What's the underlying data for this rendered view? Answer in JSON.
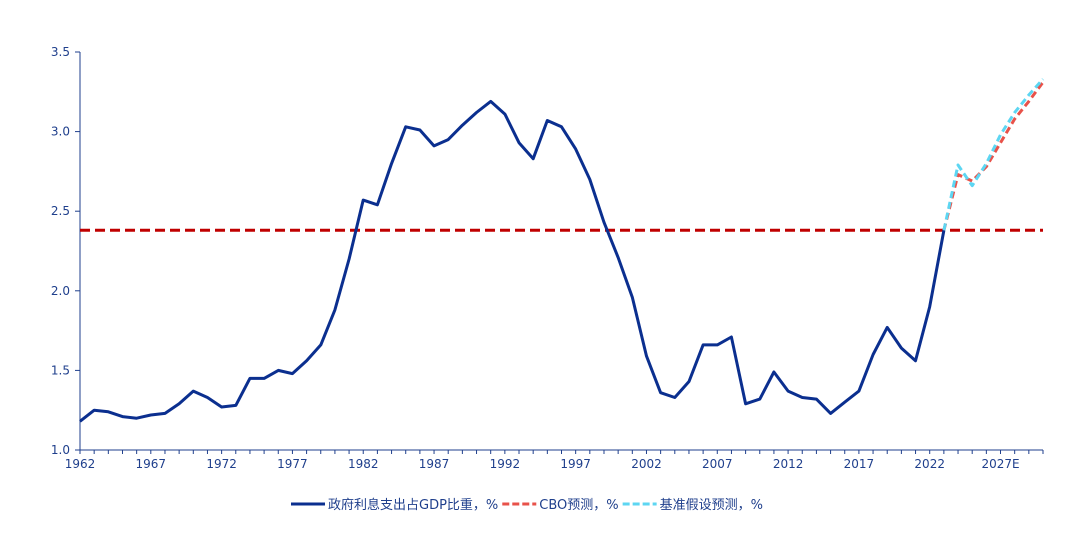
{
  "chart_data": {
    "type": "line",
    "title": "",
    "xlabel": "",
    "ylabel": "",
    "ylim": [
      1.0,
      3.5
    ],
    "y_ticks": [
      "1.0",
      "1.5",
      "2.0",
      "2.5",
      "3.0",
      "3.5"
    ],
    "x_tick_labels": [
      "1962",
      "1967",
      "1972",
      "1977",
      "1982",
      "1987",
      "1992",
      "1997",
      "2002",
      "2007",
      "2012",
      "2017",
      "2022",
      "2027E"
    ],
    "legend_position": "bottom",
    "grid": false,
    "reference_line": {
      "value": 2.38,
      "color": "#c00000",
      "style": "dashed"
    },
    "series": [
      {
        "name": "政府利息支出占GDP比重，%",
        "color": "#0b2f8f",
        "style": "solid",
        "x": [
          1962,
          1963,
          1964,
          1965,
          1966,
          1967,
          1968,
          1969,
          1970,
          1971,
          1972,
          1973,
          1974,
          1975,
          1976,
          1977,
          1978,
          1979,
          1980,
          1981,
          1982,
          1983,
          1984,
          1985,
          1986,
          1987,
          1988,
          1989,
          1990,
          1991,
          1992,
          1993,
          1994,
          1995,
          1996,
          1997,
          1998,
          1999,
          2000,
          2001,
          2002,
          2003,
          2004,
          2005,
          2006,
          2007,
          2008,
          2009,
          2010,
          2011,
          2012,
          2013,
          2014,
          2015,
          2016,
          2017,
          2018,
          2019,
          2020,
          2021,
          2022,
          2023
        ],
        "values": [
          1.18,
          1.25,
          1.24,
          1.21,
          1.2,
          1.22,
          1.23,
          1.29,
          1.37,
          1.33,
          1.27,
          1.28,
          1.45,
          1.45,
          1.5,
          1.48,
          1.56,
          1.66,
          1.88,
          2.2,
          2.57,
          2.54,
          2.8,
          3.03,
          3.01,
          2.91,
          2.95,
          3.04,
          3.12,
          3.19,
          3.11,
          2.93,
          2.83,
          3.07,
          3.03,
          2.89,
          2.7,
          2.43,
          2.21,
          1.96,
          1.59,
          1.36,
          1.33,
          1.43,
          1.66,
          1.66,
          1.71,
          1.29,
          1.32,
          1.49,
          1.37,
          1.33,
          1.32,
          1.23,
          1.3,
          1.37,
          1.6,
          1.77,
          1.64,
          1.56,
          1.9,
          2.38
        ]
      },
      {
        "name": "CBO预测，%",
        "color": "#e8524a",
        "style": "dashed",
        "x": [
          2023,
          2024,
          2025,
          2026,
          2027,
          2028,
          2029,
          2030
        ],
        "values": [
          2.38,
          2.73,
          2.69,
          2.78,
          2.93,
          3.08,
          3.19,
          3.31
        ]
      },
      {
        "name": "基准假设预测，%",
        "color": "#5dd6f2",
        "style": "dashed",
        "x": [
          2023,
          2024,
          2025,
          2026,
          2027,
          2028,
          2029,
          2030
        ],
        "values": [
          2.38,
          2.79,
          2.66,
          2.8,
          2.98,
          3.12,
          3.23,
          3.33
        ]
      }
    ]
  }
}
